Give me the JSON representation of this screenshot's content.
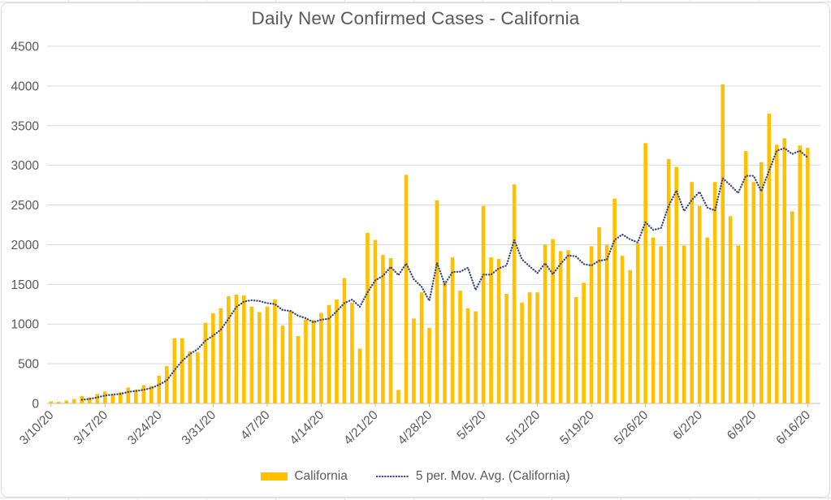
{
  "chart_data": {
    "type": "bar",
    "title": "Daily New Confirmed Cases - California",
    "num_points": 99,
    "x_start_label": "3/10/20",
    "x_tick_every": 7,
    "x_tick_labels": [
      "3/10/20",
      "3/17/20",
      "3/24/20",
      "3/31/20",
      "4/7/20",
      "4/14/20",
      "4/21/20",
      "4/28/20",
      "5/5/20",
      "5/12/20",
      "5/19/20",
      "5/26/20",
      "6/2/20",
      "6/9/20",
      "6/16/20"
    ],
    "y_axis": {
      "min": 0,
      "max": 4500,
      "step": 500,
      "tick_labels": [
        "0",
        "500",
        "1000",
        "1500",
        "2000",
        "2500",
        "3000",
        "3500",
        "4000",
        "4500"
      ]
    },
    "grid": true,
    "legend_position": "bottom",
    "series": [
      {
        "name": "California",
        "type": "bar",
        "color": "#FFC000",
        "values": [
          25,
          20,
          35,
          55,
          95,
          75,
          120,
          150,
          115,
          140,
          200,
          175,
          230,
          220,
          350,
          470,
          820,
          820,
          655,
          645,
          1015,
          1135,
          1200,
          1350,
          1370,
          1360,
          1220,
          1150,
          1220,
          1310,
          980,
          1170,
          850,
          1060,
          1050,
          1140,
          1240,
          1310,
          1580,
          1270,
          690,
          2150,
          2060,
          1870,
          1830,
          170,
          2880,
          1070,
          1400,
          950,
          2560,
          1530,
          1840,
          1420,
          1200,
          1160,
          2490,
          1840,
          1820,
          1380,
          2760,
          1270,
          1400,
          1400,
          2000,
          2070,
          1920,
          1930,
          1340,
          1520,
          1980,
          2220,
          2000,
          2580,
          1860,
          1680,
          2020,
          3280,
          2090,
          1980,
          3080,
          2980,
          1990,
          2790,
          2490,
          2090,
          2790,
          4020,
          2360,
          1990,
          3180,
          2790,
          3040,
          3650,
          3260,
          3340,
          2420,
          3250,
          3220
        ]
      }
    ],
    "moving_average": {
      "period": 5,
      "label": "5 per. Mov. Avg. (California)",
      "color": "#35477D",
      "style": "dotted"
    },
    "colors": {
      "axis_text": "#595959",
      "gridline": "#D9D9D9",
      "axis_line": "#BFBFBF",
      "title_text": "#595959"
    }
  }
}
